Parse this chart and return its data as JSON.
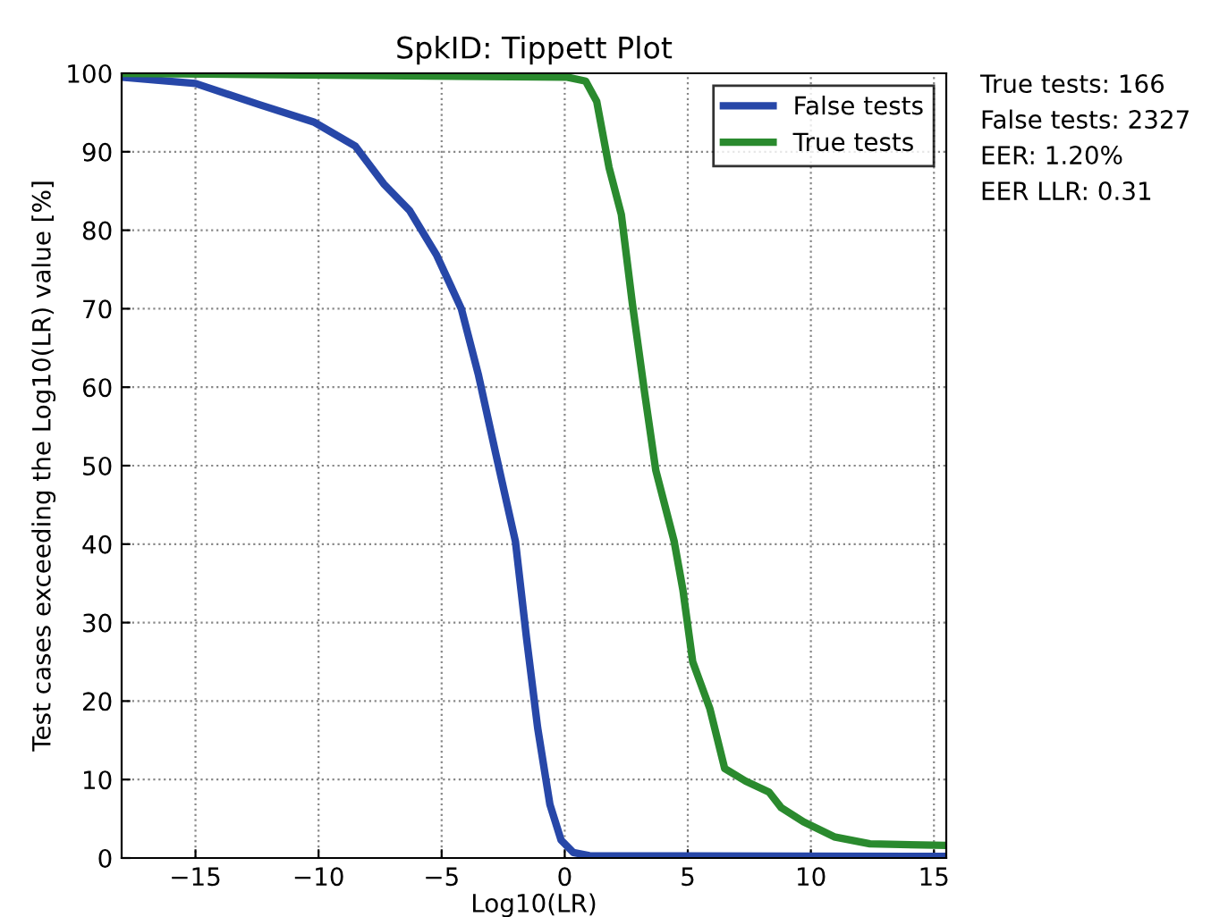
{
  "chart_data": {
    "type": "line",
    "title": "SpkID: Tippett Plot",
    "xlabel": "Log10(LR)",
    "ylabel": "Test cases exceeding the Log10(LR) value [%]",
    "series": [
      {
        "name": "False tests",
        "color": "#2747a8",
        "x": [
          -18,
          -15,
          -12.4,
          -10.2,
          -8.5,
          -7.35,
          -6.3,
          -5.2,
          -4.2,
          -3.5,
          -2.75,
          -2.0,
          -1.55,
          -1.1,
          -0.6,
          -0.15,
          0.35,
          1.0,
          15.5
        ],
        "values": [
          99.5,
          98.7,
          96,
          93.8,
          90.7,
          85.9,
          82.5,
          76.8,
          70,
          61.5,
          50.8,
          40.3,
          28,
          16.6,
          6.8,
          2.3,
          0.7,
          0.3,
          0.2
        ]
      },
      {
        "name": "True tests",
        "color": "#2a8a2e",
        "x": [
          -18,
          0.1,
          0.85,
          1.3,
          1.8,
          2.3,
          2.75,
          3.25,
          3.7,
          4.45,
          4.8,
          5.2,
          5.9,
          6.5,
          7.35,
          8.3,
          8.8,
          9.7,
          10.95,
          12.4,
          15.5
        ],
        "values": [
          100,
          99.5,
          99,
          96.4,
          88,
          82,
          70.6,
          59.2,
          49.4,
          40.3,
          34.2,
          25,
          19,
          11.4,
          9.8,
          8.4,
          6.4,
          4.6,
          2.7,
          1.8,
          1.6
        ]
      }
    ],
    "xlim": [
      -18,
      15.5
    ],
    "xticks": [
      {
        "value": -15,
        "label": "−15"
      },
      {
        "value": -10,
        "label": "−10"
      },
      {
        "value": -5,
        "label": "−5"
      },
      0,
      5,
      10,
      15
    ],
    "ylim": [
      0,
      100
    ],
    "yticks": [
      0,
      10,
      20,
      30,
      40,
      50,
      60,
      70,
      80,
      90,
      100
    ],
    "grid": true,
    "legend": "top right",
    "line_style": "solid",
    "marker": "none",
    "annotations": [
      "True tests: 166",
      "False tests: 2327",
      "EER: 1.20%",
      "EER LLR: 0.31"
    ]
  }
}
